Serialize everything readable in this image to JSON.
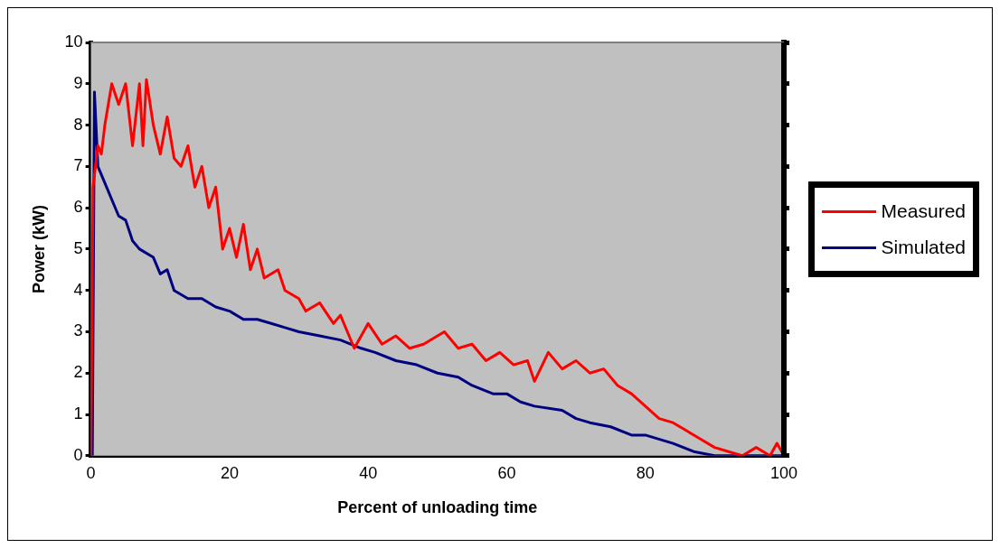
{
  "chart_data": {
    "type": "line",
    "xlabel": "Percent of unloading time",
    "ylabel": "Power (kW)",
    "xlim": [
      0,
      100
    ],
    "xticks": [
      0,
      20,
      40,
      60,
      80,
      100
    ],
    "ylim": [
      0,
      10
    ],
    "yticks": [
      0,
      1,
      2,
      3,
      4,
      5,
      6,
      7,
      8,
      9,
      10
    ],
    "grid": false,
    "legend": "right",
    "marker": "none",
    "line_style": "solid",
    "series": [
      {
        "name": "Measured",
        "color": "#ff0000",
        "x": [
          0,
          0.3,
          1,
          1.5,
          2,
          3,
          4,
          5,
          6,
          7,
          7.5,
          8,
          9,
          10,
          11,
          12,
          13,
          14,
          15,
          16,
          17,
          18,
          19,
          20,
          21,
          22,
          23,
          24,
          25,
          27,
          28,
          30,
          31,
          33,
          35,
          36,
          37,
          38,
          40,
          42,
          44,
          46,
          48,
          51,
          53,
          55,
          57,
          59,
          61,
          63,
          64,
          66,
          68,
          70,
          72,
          74,
          76,
          78,
          80,
          82,
          84,
          86,
          88,
          90,
          92,
          94,
          96,
          98,
          99,
          100
        ],
        "values": [
          0,
          6.5,
          7.5,
          7.3,
          8,
          9,
          8.5,
          9,
          7.5,
          9,
          7.5,
          9.1,
          8,
          7.3,
          8.2,
          7.2,
          7,
          7.5,
          6.5,
          7,
          6,
          6.5,
          5,
          5.5,
          4.8,
          5.6,
          4.5,
          5,
          4.3,
          4.5,
          4,
          3.8,
          3.5,
          3.7,
          3.2,
          3.4,
          3,
          2.6,
          3.2,
          2.7,
          2.9,
          2.6,
          2.7,
          3,
          2.6,
          2.7,
          2.3,
          2.5,
          2.2,
          2.3,
          1.8,
          2.5,
          2.1,
          2.3,
          2,
          2.1,
          1.7,
          1.5,
          1.2,
          0.9,
          0.8,
          0.6,
          0.4,
          0.2,
          0.1,
          0,
          0.2,
          0,
          0.3,
          0
        ]
      },
      {
        "name": "Simulated",
        "color": "#000080",
        "x": [
          0.2,
          0.5,
          1,
          2,
          3,
          4,
          5,
          6,
          7,
          9,
          10,
          11,
          12,
          14,
          16,
          18,
          20,
          22,
          24,
          26,
          28,
          30,
          33,
          36,
          39,
          41,
          44,
          47,
          50,
          53,
          55,
          58,
          60,
          62,
          64,
          68,
          70,
          72,
          75,
          78,
          80,
          84,
          87,
          90,
          100
        ],
        "values": [
          0,
          8.8,
          7,
          6.6,
          6.2,
          5.8,
          5.7,
          5.2,
          5,
          4.8,
          4.4,
          4.5,
          4,
          3.8,
          3.8,
          3.6,
          3.5,
          3.3,
          3.3,
          3.2,
          3.1,
          3,
          2.9,
          2.8,
          2.6,
          2.5,
          2.3,
          2.2,
          2,
          1.9,
          1.7,
          1.5,
          1.5,
          1.3,
          1.2,
          1.1,
          0.9,
          0.8,
          0.7,
          0.5,
          0.5,
          0.3,
          0.1,
          0,
          0
        ]
      }
    ]
  }
}
